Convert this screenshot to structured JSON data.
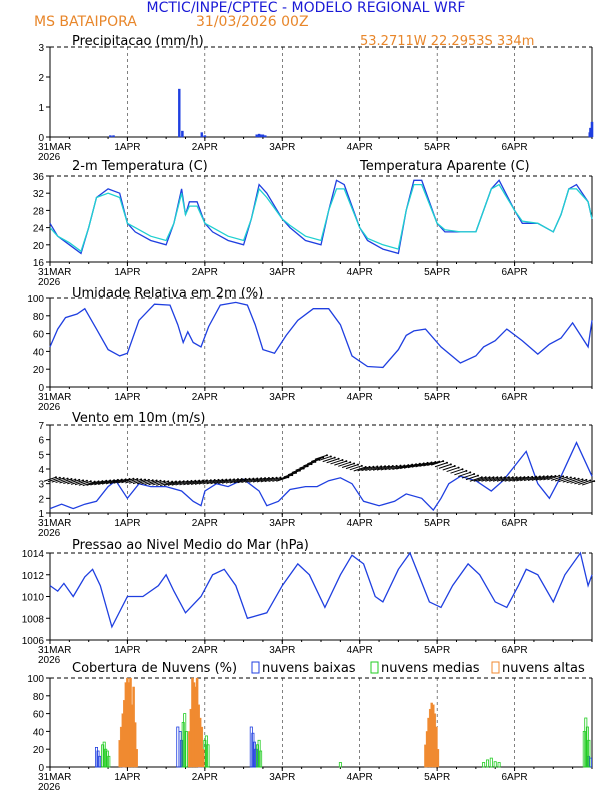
{
  "header": {
    "title": "MCTIC/INPE/CPTEC - MODELO REGIONAL WRF",
    "station": "MS BATAIPORA",
    "run": "31/03/2026 00Z",
    "coords": "53.2711W 22.2953S 334m",
    "title_color": "#1a1ad6",
    "station_color": "#e8862a"
  },
  "colors": {
    "blue": "#1f3fe0",
    "cyan": "#1fd0d0",
    "green": "#22cc22",
    "orange": "#f08a30",
    "black": "#000000"
  },
  "x_axis": {
    "ticks": [
      {
        "day": 0,
        "label": "31MAR",
        "year": "2026"
      },
      {
        "day": 1,
        "label": "1APR"
      },
      {
        "day": 2,
        "label": "2APR"
      },
      {
        "day": 3,
        "label": "3APR"
      },
      {
        "day": 4,
        "label": "4APR"
      },
      {
        "day": 5,
        "label": "5APR"
      },
      {
        "day": 6,
        "label": "6APR"
      }
    ],
    "range_days": [
      0,
      7
    ]
  },
  "chart_data": [
    {
      "type": "bar",
      "title": "Precipitacao (mm/h)",
      "ylim": [
        0,
        3
      ],
      "yticks": [
        "0",
        "1",
        "2",
        "3"
      ],
      "series": [
        {
          "name": "precip",
          "color": "blue",
          "x": [
            0.78,
            0.82,
            1.67,
            1.71,
            1.96,
            2.0,
            2.67,
            2.7,
            2.72,
            2.75,
            2.78,
            6.97,
            6.98,
            7.0
          ],
          "values": [
            0.05,
            0.05,
            1.6,
            0.2,
            0.15,
            0.05,
            0.08,
            0.1,
            0.08,
            0.08,
            0.05,
            0.15,
            0.3,
            0.5
          ]
        }
      ]
    },
    {
      "type": "line",
      "title": "2-m Temperatura (C)",
      "legend": "Temperatura Aparente (C)",
      "ylim": [
        16,
        36
      ],
      "yticks": [
        "16",
        "20",
        "24",
        "28",
        "32",
        "36"
      ],
      "series": [
        {
          "name": "Temperatura",
          "color": "blue",
          "x": [
            0,
            0.1,
            0.25,
            0.4,
            0.5,
            0.6,
            0.75,
            0.9,
            1.0,
            1.1,
            1.3,
            1.5,
            1.6,
            1.7,
            1.75,
            1.8,
            1.9,
            2.0,
            2.1,
            2.3,
            2.5,
            2.6,
            2.7,
            2.8,
            3.0,
            3.1,
            3.3,
            3.5,
            3.6,
            3.7,
            3.8,
            4.0,
            4.1,
            4.3,
            4.5,
            4.6,
            4.7,
            4.8,
            5.0,
            5.1,
            5.3,
            5.5,
            5.6,
            5.7,
            5.8,
            6.0,
            6.1,
            6.3,
            6.5,
            6.6,
            6.7,
            6.8,
            6.95,
            7.0
          ],
          "values": [
            25,
            22,
            20,
            18,
            24,
            31,
            33,
            32,
            25,
            23,
            21,
            20,
            25,
            33,
            27,
            30,
            30,
            25,
            23,
            21,
            20,
            26,
            34,
            32,
            26,
            24,
            21,
            20,
            28,
            35,
            34,
            24,
            21,
            19,
            18,
            28,
            35,
            35,
            25,
            23,
            23,
            23,
            28,
            33,
            35,
            28,
            25,
            25,
            23,
            27,
            33,
            34,
            30,
            26
          ]
        },
        {
          "name": "Temperatura Aparente",
          "color": "cyan",
          "x": [
            0,
            0.1,
            0.25,
            0.4,
            0.5,
            0.6,
            0.75,
            0.9,
            1.0,
            1.1,
            1.3,
            1.5,
            1.6,
            1.7,
            1.75,
            1.8,
            1.9,
            2.0,
            2.1,
            2.3,
            2.5,
            2.6,
            2.7,
            2.8,
            3.0,
            3.1,
            3.3,
            3.5,
            3.6,
            3.7,
            3.8,
            4.0,
            4.1,
            4.3,
            4.5,
            4.6,
            4.7,
            4.8,
            5.0,
            5.1,
            5.3,
            5.5,
            5.6,
            5.7,
            5.8,
            6.0,
            6.1,
            6.3,
            6.5,
            6.6,
            6.7,
            6.8,
            6.95,
            7.0
          ],
          "values": [
            24,
            22,
            20.5,
            18.5,
            24,
            31,
            32,
            31,
            25,
            24,
            22,
            21,
            25,
            32,
            27,
            29,
            29,
            25,
            24,
            22,
            21,
            26,
            33,
            31,
            26,
            24.5,
            22,
            21,
            28,
            33,
            33,
            24,
            21.5,
            20,
            19,
            28,
            34,
            34,
            25,
            23.5,
            23,
            23,
            28,
            33,
            34,
            28,
            25.5,
            25,
            23,
            27,
            33,
            33,
            30,
            26
          ]
        }
      ]
    },
    {
      "type": "line",
      "title": "Umidade Relativa em 2m (%)",
      "ylim": [
        0,
        100
      ],
      "yticks": [
        "0",
        "20",
        "40",
        "60",
        "80",
        "100"
      ],
      "series": [
        {
          "name": "umidade",
          "color": "blue",
          "x": [
            0,
            0.1,
            0.2,
            0.35,
            0.45,
            0.6,
            0.75,
            0.9,
            1.0,
            1.15,
            1.35,
            1.55,
            1.65,
            1.72,
            1.78,
            1.85,
            1.95,
            2.05,
            2.2,
            2.4,
            2.55,
            2.65,
            2.75,
            2.9,
            3.05,
            3.2,
            3.4,
            3.6,
            3.75,
            3.9,
            4.1,
            4.3,
            4.5,
            4.6,
            4.7,
            4.85,
            5.05,
            5.3,
            5.5,
            5.6,
            5.75,
            5.9,
            6.1,
            6.3,
            6.45,
            6.6,
            6.75,
            6.95,
            7.0
          ],
          "values": [
            45,
            65,
            78,
            82,
            88,
            65,
            42,
            35,
            38,
            75,
            93,
            92,
            70,
            50,
            62,
            50,
            45,
            68,
            92,
            95,
            92,
            70,
            42,
            38,
            58,
            75,
            88,
            88,
            70,
            35,
            23,
            22,
            42,
            58,
            63,
            65,
            45,
            27,
            35,
            45,
            52,
            65,
            52,
            37,
            48,
            55,
            72,
            45,
            75
          ]
        }
      ]
    },
    {
      "type": "line",
      "title": "Vento em 10m (m/s)",
      "ylim": [
        1,
        7
      ],
      "yticks": [
        "1",
        "2",
        "3",
        "4",
        "5",
        "6",
        "7"
      ],
      "series": [
        {
          "name": "velocidade",
          "color": "blue",
          "x": [
            0,
            0.15,
            0.3,
            0.45,
            0.6,
            0.75,
            0.85,
            1.0,
            1.15,
            1.3,
            1.5,
            1.7,
            1.85,
            1.95,
            2.0,
            2.15,
            2.3,
            2.5,
            2.7,
            2.8,
            2.95,
            3.1,
            3.3,
            3.45,
            3.6,
            3.75,
            3.9,
            4.05,
            4.25,
            4.45,
            4.6,
            4.8,
            4.95,
            5.05,
            5.15,
            5.3,
            5.5,
            5.7,
            5.85,
            6.0,
            6.15,
            6.3,
            6.45,
            6.6,
            6.8,
            7.0
          ],
          "values": [
            1.3,
            1.6,
            1.3,
            1.6,
            1.8,
            2.8,
            3.2,
            2.0,
            3.0,
            2.8,
            2.8,
            2.5,
            1.8,
            1.5,
            2.5,
            3.0,
            2.8,
            3.3,
            2.5,
            1.5,
            1.8,
            2.6,
            2.8,
            2.8,
            3.2,
            3.4,
            3.0,
            1.8,
            1.5,
            1.8,
            2.3,
            2.0,
            1.2,
            2.0,
            3.0,
            3.5,
            3.2,
            2.5,
            3.2,
            4.2,
            5.2,
            3.0,
            2.0,
            3.5,
            5.8,
            3.5
          ]
        },
        {
          "name": "direcao-barbs",
          "color": "black",
          "x": [
            0,
            0.5,
            1,
            1.5,
            2,
            2.5,
            3,
            3.5,
            4,
            4.5,
            5,
            5.5,
            6,
            6.5,
            7
          ],
          "values": [
            3.3,
            3.0,
            3.2,
            3.0,
            3.1,
            3.2,
            3.3,
            4.8,
            4.0,
            4.1,
            4.4,
            3.3,
            3.3,
            3.4,
            3.0
          ]
        }
      ]
    },
    {
      "type": "line",
      "title": "Pressao ao Nivel Medio do Mar (hPa)",
      "ylim": [
        1006,
        1014
      ],
      "yticks": [
        "1006",
        "1008",
        "1010",
        "1012",
        "1014"
      ],
      "series": [
        {
          "name": "pressao",
          "color": "blue",
          "x": [
            0,
            0.1,
            0.18,
            0.3,
            0.45,
            0.55,
            0.65,
            0.8,
            1.0,
            1.2,
            1.4,
            1.5,
            1.6,
            1.75,
            1.95,
            2.1,
            2.25,
            2.4,
            2.55,
            2.8,
            3.0,
            3.2,
            3.35,
            3.55,
            3.75,
            3.9,
            4.05,
            4.2,
            4.3,
            4.5,
            4.65,
            4.9,
            5.05,
            5.2,
            5.4,
            5.55,
            5.75,
            5.9,
            6.05,
            6.15,
            6.3,
            6.5,
            6.65,
            6.85,
            6.95,
            7.0
          ],
          "values": [
            1011,
            1010.5,
            1011.2,
            1010,
            1011.8,
            1012.5,
            1011,
            1007.2,
            1010,
            1010,
            1011,
            1012,
            1010.5,
            1008.5,
            1010,
            1012,
            1012.5,
            1011,
            1008,
            1008.5,
            1011,
            1013,
            1012,
            1009,
            1012,
            1013.8,
            1013,
            1010,
            1009.5,
            1012.5,
            1014,
            1009.5,
            1009,
            1011,
            1013,
            1012,
            1009.5,
            1009,
            1011,
            1012.5,
            1012,
            1009.5,
            1012,
            1014,
            1011,
            1012
          ]
        }
      ]
    },
    {
      "type": "bar",
      "title": "Cobertura de Nuvens (%)",
      "ylim": [
        0,
        100
      ],
      "yticks": [
        "0",
        "20",
        "40",
        "60",
        "80",
        "100"
      ],
      "legend": [
        "nuvens baixas",
        "nuvens medias",
        "nuvens altas"
      ],
      "series": [
        {
          "name": "nuvens baixas",
          "color": "blue",
          "style": "outline",
          "x": [
            0.6,
            0.62,
            0.64,
            0.95,
            1.65,
            1.68,
            1.7,
            1.93,
            1.96,
            2.6,
            2.62,
            2.64,
            2.66,
            6.95,
            6.98
          ],
          "values": [
            22,
            18,
            12,
            8,
            45,
            40,
            30,
            25,
            18,
            45,
            38,
            28,
            20,
            12,
            10
          ]
        },
        {
          "name": "nuvens medias",
          "color": "green",
          "style": "outline",
          "x": [
            0.68,
            0.7,
            0.72,
            0.74,
            0.76,
            1.72,
            1.74,
            1.76,
            2.0,
            2.02,
            2.04,
            2.68,
            2.7,
            2.72,
            3.75,
            5.6,
            5.65,
            5.7,
            5.75,
            5.8,
            6.9,
            6.92,
            6.94,
            6.96
          ],
          "values": [
            25,
            28,
            20,
            18,
            12,
            50,
            60,
            40,
            30,
            35,
            25,
            25,
            30,
            18,
            5,
            5,
            8,
            10,
            6,
            5,
            40,
            55,
            45,
            30
          ]
        },
        {
          "name": "nuvens altas",
          "color": "orange",
          "style": "filled",
          "x": [
            0.9,
            0.92,
            0.94,
            0.96,
            0.98,
            1.0,
            1.02,
            1.04,
            1.06,
            1.08,
            1.1,
            1.12,
            1.8,
            1.82,
            1.84,
            1.86,
            1.88,
            1.9,
            1.92,
            1.94,
            1.96,
            1.98,
            4.85,
            4.87,
            4.89,
            4.91,
            4.93,
            4.95,
            4.97,
            4.99,
            5.01
          ],
          "values": [
            30,
            45,
            60,
            75,
            95,
            100,
            95,
            100,
            70,
            90,
            50,
            20,
            40,
            65,
            100,
            95,
            90,
            100,
            70,
            55,
            45,
            20,
            25,
            40,
            55,
            65,
            72,
            70,
            60,
            45,
            20
          ]
        }
      ]
    }
  ]
}
